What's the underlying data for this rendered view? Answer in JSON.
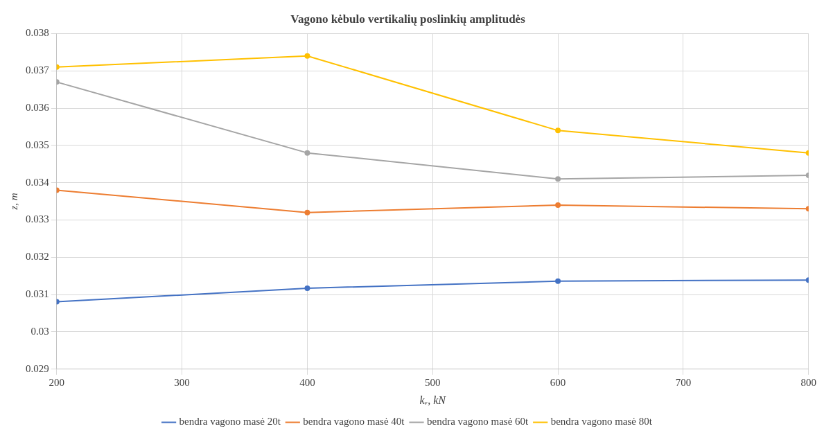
{
  "chart_data": {
    "type": "line",
    "title": "Vagono kėbulo vertikalių poslinkių amplitudės",
    "xlabel": "kᵥ, kN",
    "ylabel": "z, m",
    "x": [
      200,
      400,
      600,
      800
    ],
    "xlim": [
      200,
      800
    ],
    "xticks": [
      200,
      300,
      400,
      500,
      600,
      700,
      800
    ],
    "ylim": [
      0.029,
      0.038
    ],
    "yticks": [
      0.029,
      0.03,
      0.031,
      0.032,
      0.033,
      0.034,
      0.035,
      0.036,
      0.037,
      0.038
    ],
    "grid": true,
    "legend": "bottom",
    "marker": "circle",
    "series": [
      {
        "name": "bendra vagono masė 20t",
        "color": "#4472c4",
        "values": [
          0.03081,
          0.03117,
          0.03136,
          0.03139
        ]
      },
      {
        "name": "bendra vagono masė 40t",
        "color": "#ed7d31",
        "values": [
          0.0338,
          0.0332,
          0.0334,
          0.0333
        ]
      },
      {
        "name": "bendra vagono masė 60t",
        "color": "#a5a5a5",
        "values": [
          0.0367,
          0.0348,
          0.0341,
          0.0342
        ]
      },
      {
        "name": "bendra vagono masė 80t",
        "color": "#ffc000",
        "values": [
          0.0371,
          0.0374,
          0.0354,
          0.0348
        ]
      }
    ]
  }
}
